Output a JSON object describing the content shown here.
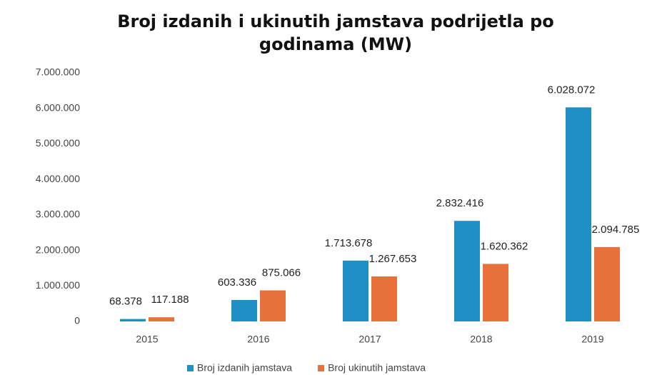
{
  "chart_data": {
    "type": "bar",
    "title": "Broj izdanih i ukinutih jamstava podrijetla po godinama (MW)",
    "categories": [
      "2015",
      "2016",
      "2017",
      "2018",
      "2019"
    ],
    "series": [
      {
        "name": "Broj izdanih jamstava",
        "color": "#1f8fc4",
        "values": [
          68378,
          603336,
          1713678,
          2832416,
          6028072
        ],
        "value_labels": [
          "68.378",
          "603.336",
          "1.713.678",
          "2.832.416",
          "6.028.072"
        ]
      },
      {
        "name": "Broj ukinutih jamstava",
        "color": "#e8703a",
        "values": [
          117188,
          875066,
          1267653,
          1620362,
          2094785
        ],
        "value_labels": [
          "117.188",
          "875.066",
          "1.267.653",
          "1.620.362",
          "2.094.785"
        ]
      }
    ],
    "ylim": [
      0,
      7000000
    ],
    "yticks": [
      0,
      {
        "value": 1000000,
        "label": "1.000.000"
      },
      {
        "value": 2000000,
        "label": "2.000.000"
      },
      {
        "value": 3000000,
        "label": "3.000.000"
      },
      {
        "value": 4000000,
        "label": "4.000.000"
      },
      {
        "value": 5000000,
        "label": "5.000.000"
      },
      {
        "value": 6000000,
        "label": "6.000.000"
      },
      {
        "value": 7000000,
        "label": "7.000.000"
      }
    ],
    "grid": false,
    "legend": "bottom"
  }
}
